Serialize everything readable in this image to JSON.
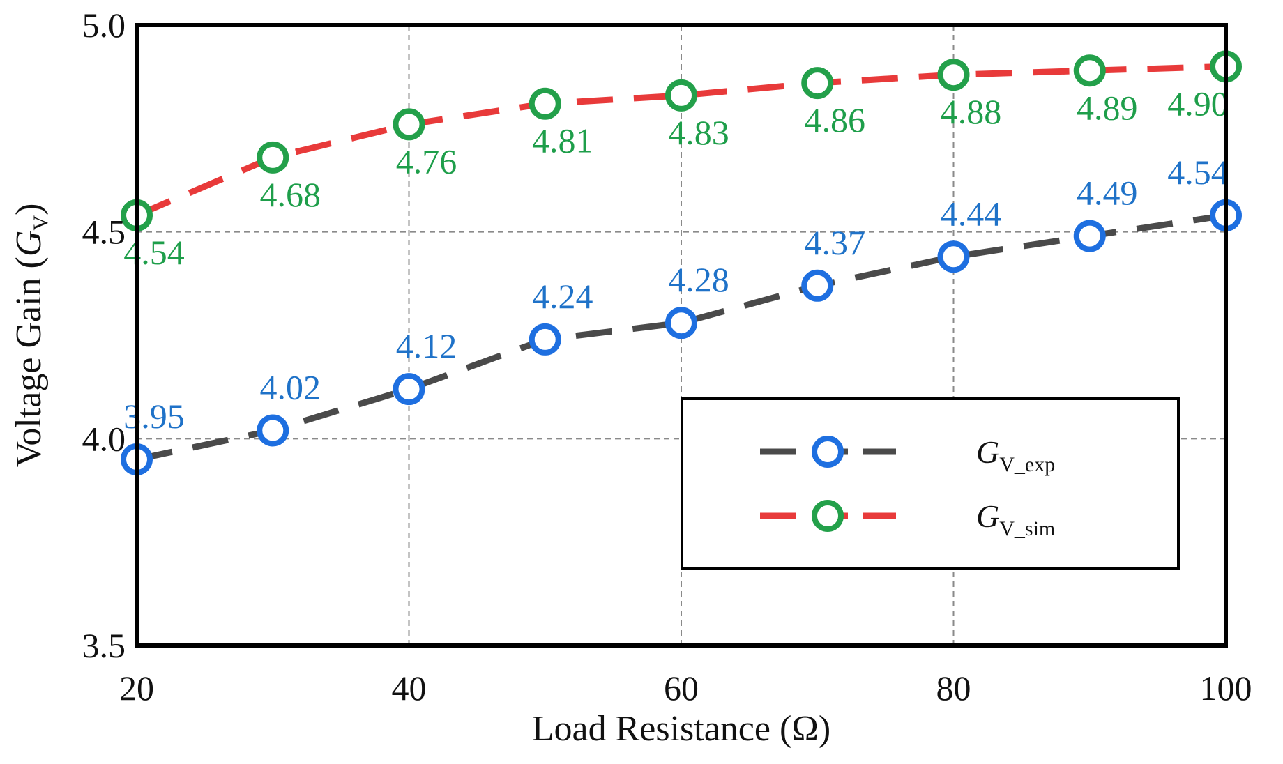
{
  "chart_data": {
    "type": "line",
    "xlabel": "Load Resistance (Ω)",
    "ylabel": {
      "prefix": "Voltage Gain (",
      "symbol": "G",
      "subscript": "V",
      "suffix": ")"
    },
    "xlim": [
      20,
      100
    ],
    "ylim": [
      3.5,
      5.0
    ],
    "x_ticks": [
      20,
      40,
      60,
      80,
      100
    ],
    "x_tick_labels": [
      "20",
      "40",
      "60",
      "80",
      "100"
    ],
    "y_ticks": [
      3.5,
      4.0,
      4.5,
      5.0
    ],
    "y_tick_labels": [
      "3.5",
      "4.0",
      "4.5",
      "5.0"
    ],
    "grid": true,
    "legend_position": "lower-right",
    "x": [
      20,
      30,
      40,
      50,
      60,
      70,
      80,
      90,
      100
    ],
    "series": [
      {
        "name": "G_V_exp",
        "legend_symbol": "G",
        "legend_subscript": "V_exp",
        "line_color": "#4a4a4a",
        "marker_color": "#1e6fe0",
        "label_color": "#1f72c8",
        "label_side": "above",
        "values": [
          3.95,
          4.02,
          4.12,
          4.24,
          4.28,
          4.37,
          4.44,
          4.49,
          4.54
        ],
        "labels": [
          "3.95",
          "4.02",
          "4.12",
          "4.24",
          "4.28",
          "4.37",
          "4.44",
          "4.49",
          "4.54"
        ]
      },
      {
        "name": "G_V_sim",
        "legend_symbol": "G",
        "legend_subscript": "V_sim",
        "line_color": "#e83a3a",
        "marker_color": "#23a04a",
        "label_color": "#1e9e4a",
        "label_side": "below",
        "values": [
          4.54,
          4.68,
          4.76,
          4.81,
          4.83,
          4.86,
          4.88,
          4.89,
          4.9
        ],
        "labels": [
          "4.54",
          "4.68",
          "4.76",
          "4.81",
          "4.83",
          "4.86",
          "4.88",
          "4.89",
          "4.90"
        ]
      }
    ]
  }
}
